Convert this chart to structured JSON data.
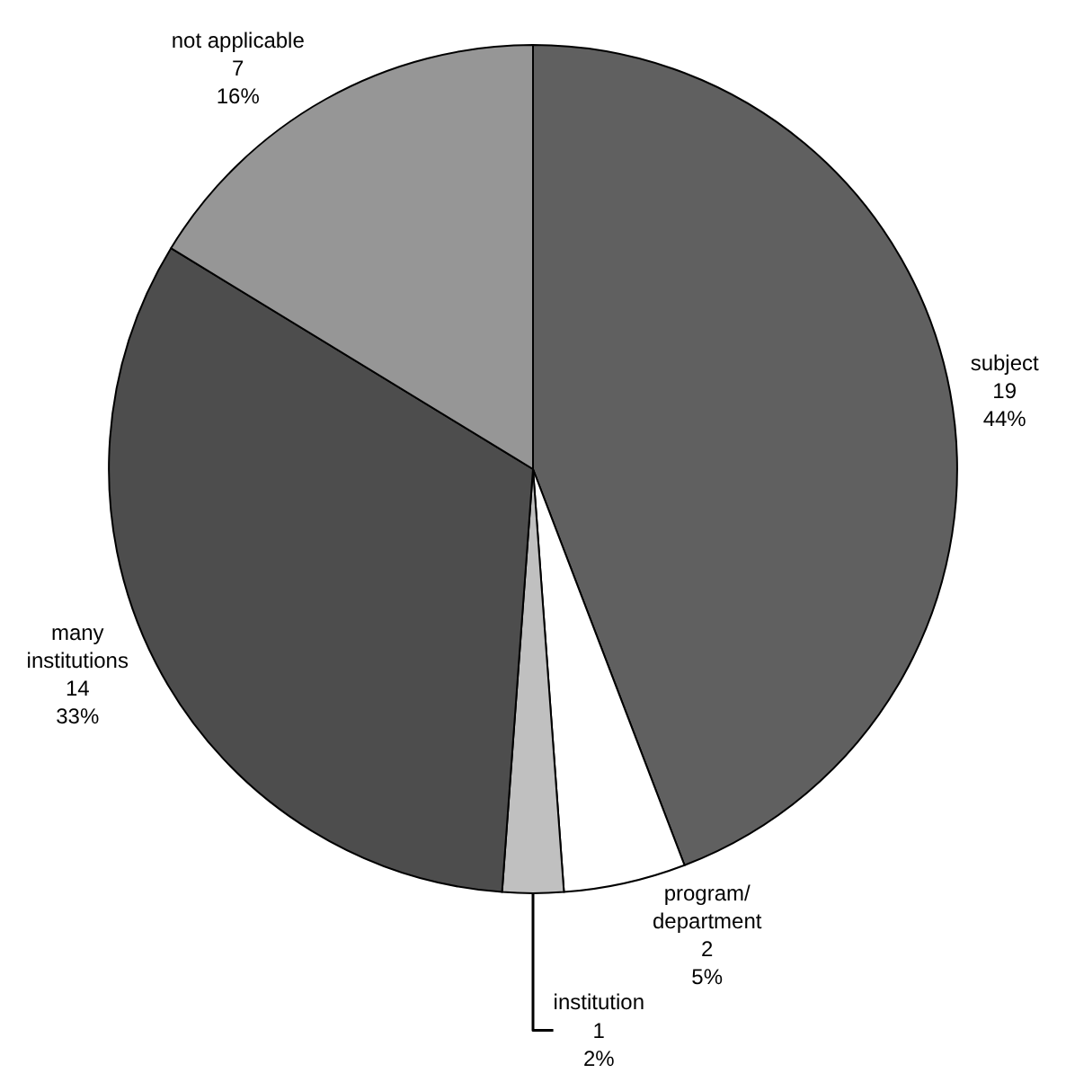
{
  "chart_data": {
    "type": "pie",
    "categories": [
      "subject",
      "program/\ndepartment",
      "institution",
      "many\ninstitutions",
      "not applicable"
    ],
    "values": [
      19,
      2,
      1,
      14,
      7
    ],
    "value_labels": [
      "19\n44%",
      "2\n5%",
      "1\n2%",
      "14\n33%",
      "7\n16%"
    ],
    "colors": [
      "#606060",
      "#ffffff",
      "#c0c0c0",
      "#4d4d4d",
      "#969696"
    ],
    "legend": false
  }
}
